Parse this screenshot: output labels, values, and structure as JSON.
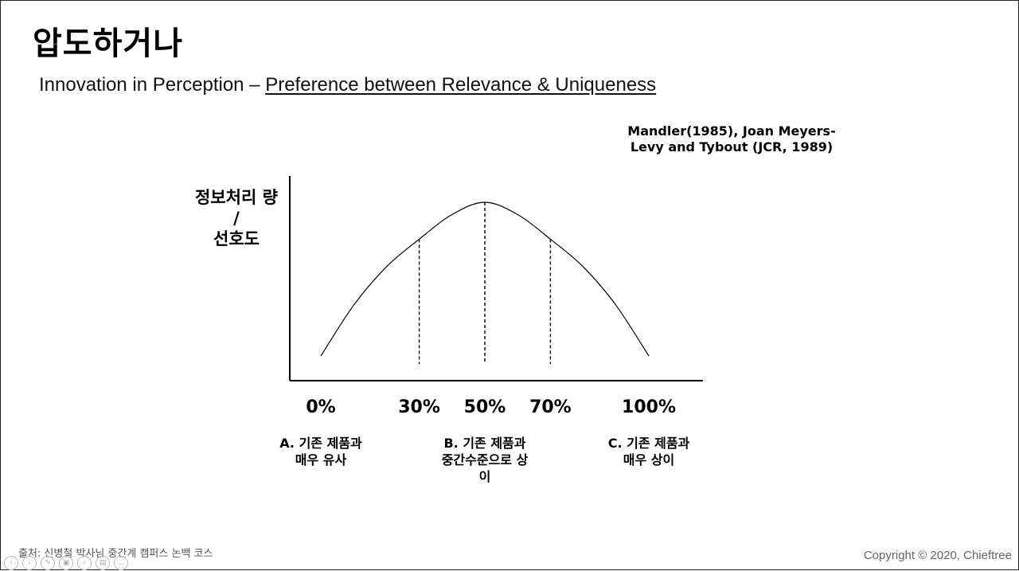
{
  "slide": {
    "title": "압도하거나",
    "subtitle_prefix": "Innovation in Perception – ",
    "subtitle_underlined": "Preference between Relevance & Uniqueness",
    "citation_line1": "Mandler(1985), Joan Meyers-",
    "citation_line2": "Levy and Tybout (JCR, 1989)",
    "source": "출처: 신병철 박사님 중간계 캠퍼스 논백 코스",
    "copyright": "Copyright © 2020, Chieftree"
  },
  "chart_data": {
    "type": "line",
    "ylabel": [
      "정보처리 량",
      "/",
      "선호도"
    ],
    "xlabel": "",
    "x_ticks": [
      "0%",
      "30%",
      "50%",
      "70%",
      "100%"
    ],
    "series": [
      {
        "x": [
          0,
          10,
          20,
          30,
          40,
          50,
          60,
          70,
          80,
          90,
          100
        ],
        "y": [
          0,
          0.33,
          0.58,
          0.76,
          0.92,
          1.0,
          0.92,
          0.76,
          0.58,
          0.33,
          0
        ]
      }
    ],
    "dashed_markers_at_x": [
      30,
      50,
      70
    ],
    "xlim": [
      0,
      100
    ],
    "ylim": [
      0,
      1
    ],
    "grid": false,
    "categories": [
      {
        "x": 0,
        "lines": [
          "A. 기존  제품과",
          "매우  유사"
        ]
      },
      {
        "x": 50,
        "lines": [
          "B. 기존  제품과",
          "중간수준으로 상",
          "이"
        ]
      },
      {
        "x": 100,
        "lines": [
          "C. 기존  제품과",
          "매우  상이"
        ]
      }
    ]
  },
  "toolbar": {
    "icons": [
      "prev-icon",
      "next-icon",
      "pen-icon",
      "slides-icon",
      "zoom-icon",
      "subtitles-icon",
      "more-icon"
    ],
    "glyphs": [
      "‹",
      "›",
      "✎",
      "▣",
      "⌕",
      "▤",
      "…"
    ]
  }
}
